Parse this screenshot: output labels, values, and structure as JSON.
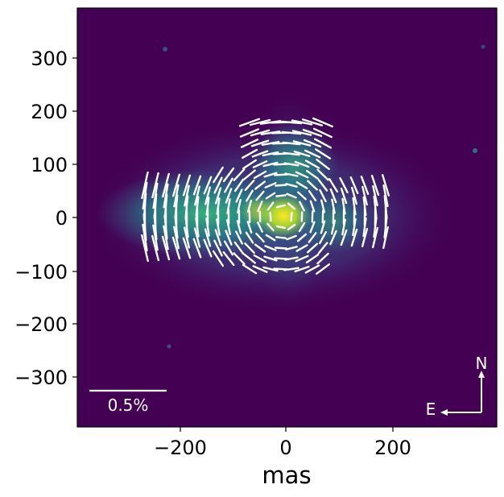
{
  "xlabel": "mas",
  "x_ticks": [
    "−200",
    "0",
    "200"
  ],
  "y_ticks": [
    "300",
    "200",
    "100",
    "0",
    "−100",
    "−200",
    "−300"
  ],
  "scale_bar_label": "0.5%",
  "compass": {
    "north": "N",
    "east": "E"
  },
  "colormap": "viridis",
  "colors": {
    "background": "#440154",
    "peak": "#fde725",
    "vectors": "#ffffff"
  }
}
